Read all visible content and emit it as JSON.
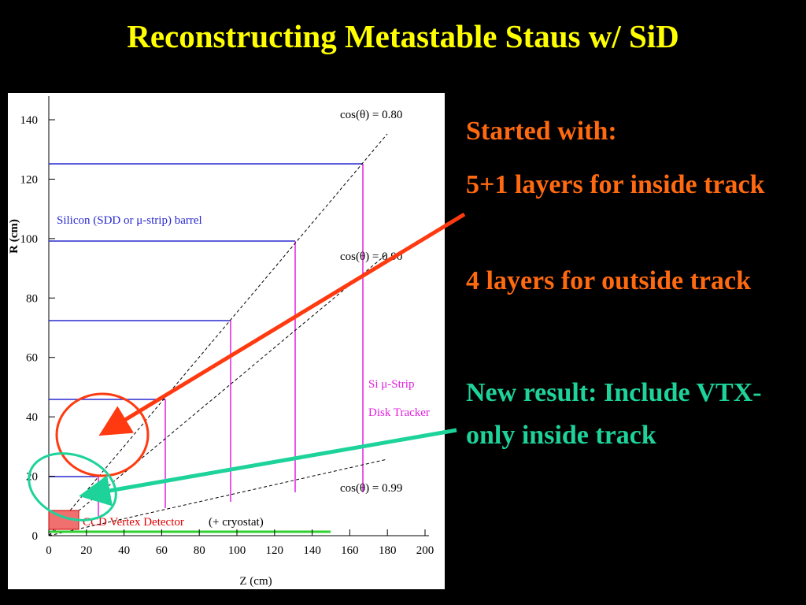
{
  "title": "Reconstructing Metastable Staus w/ SiD",
  "plot": {
    "y_label": "R (cm)",
    "x_label": "Z (cm)",
    "y_ticks": [
      "0",
      "20",
      "40",
      "60",
      "80",
      "100",
      "120",
      "140"
    ],
    "x_ticks": [
      "0",
      "20",
      "40",
      "60",
      "80",
      "100",
      "120",
      "140",
      "160",
      "180",
      "200"
    ],
    "cos_labels": [
      "cos(θ) = 0.80",
      "cos(θ) = 0.90",
      "cos(θ) = 0.99"
    ],
    "barrel_label": "Silicon (SDD or μ-strip) barrel",
    "disk_label": [
      "Si μ-Strip",
      "Disk Tracker"
    ],
    "vertex_label": "CCD Vertex Detector",
    "cryostat_label": "(+ cryostat)"
  },
  "bullets": [
    "Started with:",
    "5+1 layers for inside track",
    "4 layers for outside track",
    "New result: Include VTX-only inside track"
  ]
}
